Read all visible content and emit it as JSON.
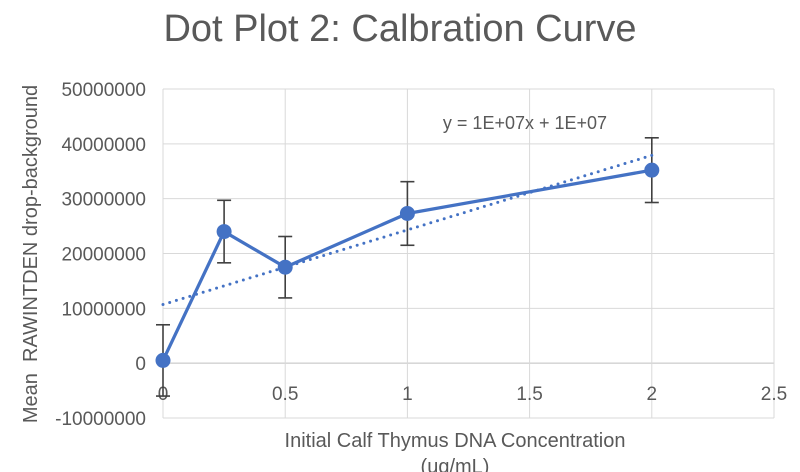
{
  "colors": {
    "series": "#4472C4",
    "error_bar": "#404040",
    "gridline": "#D9D9D9",
    "axis_line": "#BFBFBF",
    "text": "#595959"
  },
  "chart_data": {
    "type": "line",
    "title": "Dot Plot 2: Calbration Curve",
    "xlabel": "Initial Calf Thymus DNA Concentration (ug/mL)",
    "ylabel": "Mean  RAWINTDEN drop-background",
    "x": [
      0,
      0.25,
      0.5,
      1,
      2
    ],
    "y": [
      500000,
      24000000,
      17500000,
      27300000,
      35200000
    ],
    "y_error": [
      6500000,
      5700000,
      5600000,
      5800000,
      5900000
    ],
    "trendline": {
      "label": "y = 1E+07x + 1E+07",
      "slope": 13600000,
      "intercept": 10700000,
      "x_range": [
        0,
        2.02
      ],
      "style": "dotted-linear"
    },
    "xlim": [
      0,
      2.5
    ],
    "ylim": [
      -10000000,
      50000000
    ],
    "x_tick_values": [
      0,
      0.5,
      1,
      1.5,
      2,
      2.5
    ],
    "x_tick_labels": [
      "0",
      "0.5",
      "1",
      "1.5",
      "2",
      "2.5"
    ],
    "y_tick_values": [
      -10000000,
      0,
      10000000,
      20000000,
      30000000,
      40000000,
      50000000
    ],
    "y_tick_labels": [
      "-10000000",
      "0",
      "10000000",
      "20000000",
      "30000000",
      "40000000",
      "50000000"
    ],
    "grid": true,
    "legend": false,
    "marker": "circle"
  }
}
